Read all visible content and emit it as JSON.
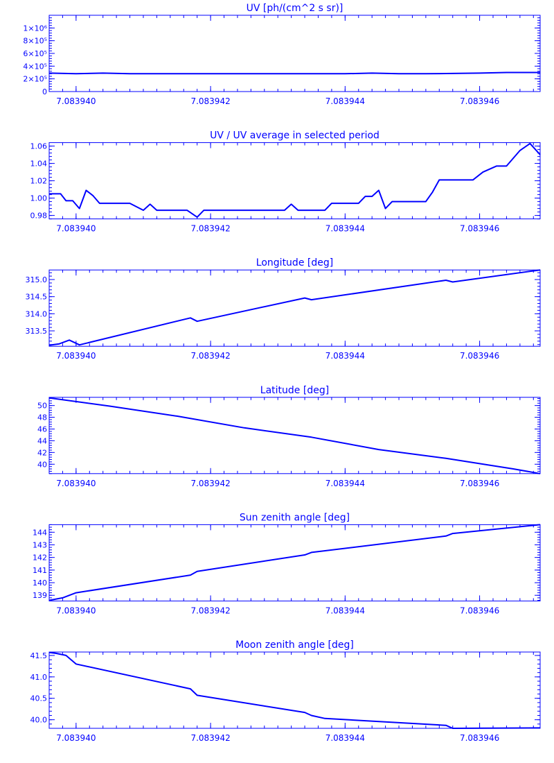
{
  "chart_data": [
    {
      "type": "line",
      "title": "UV [ph/(cm^2 s sr)]",
      "ylim": [
        0,
        1200000
      ],
      "yticks": [
        0,
        200000,
        400000,
        600000,
        800000,
        1000000
      ],
      "ytick_labels": [
        "0",
        "2×10⁵",
        "4×10⁵",
        "6×10⁵",
        "8×10⁵",
        "1×10⁶"
      ],
      "xticks": [
        "7.083940",
        "7.083942",
        "7.083944",
        "7.083946"
      ],
      "xlim": [
        7.0839396,
        7.0839469
      ],
      "series": [
        {
          "color": "#0000ff",
          "x": [
            7.0839396,
            7.08394,
            7.0839404,
            7.0839408,
            7.0839412,
            7.0839416,
            7.083942,
            7.0839424,
            7.0839428,
            7.0839432,
            7.0839436,
            7.083944,
            7.0839444,
            7.0839448,
            7.0839452,
            7.0839456,
            7.083946,
            7.0839464,
            7.0839469
          ],
          "y": [
            290000,
            280000,
            290000,
            280000,
            280000,
            280000,
            280000,
            280000,
            280000,
            280000,
            280000,
            280000,
            290000,
            280000,
            280000,
            285000,
            290000,
            300000,
            300000
          ]
        }
      ]
    },
    {
      "type": "line",
      "title": "UV / UV average in selected period",
      "ylim": [
        0.976,
        1.064
      ],
      "yticks": [
        0.98,
        1.0,
        1.02,
        1.04,
        1.06
      ],
      "ytick_labels": [
        "0.98",
        "1.00",
        "1.02",
        "1.04",
        "1.06"
      ],
      "xticks": [
        "7.083940",
        "7.083942",
        "7.083944",
        "7.083946"
      ],
      "xlim": [
        7.0839396,
        7.0839469
      ],
      "series": [
        {
          "color": "#0000ff",
          "x": [
            7.0839396,
            7.08393977,
            7.08393985,
            7.08393995,
            7.08394005,
            7.08394015,
            7.08394025,
            7.08394035,
            7.0839408,
            7.083941,
            7.0839411,
            7.0839412,
            7.08394165,
            7.0839418,
            7.0839419,
            7.0839431,
            7.0839432,
            7.0839433,
            7.0839437,
            7.0839438,
            7.0839442,
            7.0839443,
            7.0839444,
            7.0839445,
            7.0839446,
            7.0839447,
            7.0839448,
            7.0839452,
            7.0839453,
            7.0839454,
            7.0839456,
            7.0839459,
            7.08394605,
            7.08394625,
            7.0839464,
            7.0839466,
            7.08394675,
            7.0839469
          ],
          "y": [
            1.005,
            1.005,
            0.997,
            0.997,
            0.988,
            1.009,
            1.003,
            0.994,
            0.994,
            0.986,
            0.993,
            0.986,
            0.986,
            0.978,
            0.986,
            0.986,
            0.993,
            0.986,
            0.986,
            0.994,
            0.994,
            1.002,
            1.002,
            1.009,
            0.988,
            0.996,
            0.996,
            0.996,
            1.007,
            1.021,
            1.021,
            1.021,
            1.03,
            1.037,
            1.037,
            1.055,
            1.063,
            1.05
          ]
        }
      ]
    },
    {
      "type": "line",
      "title": "Longitude [deg]",
      "ylim": [
        313.05,
        315.28
      ],
      "yticks": [
        313.5,
        314.0,
        314.5,
        315.0
      ],
      "ytick_labels": [
        "313.5",
        "314.0",
        "314.5",
        "315.0"
      ],
      "xticks": [
        "7.083940",
        "7.083942",
        "7.083944",
        "7.083946"
      ],
      "xlim": [
        7.0839396,
        7.0839469
      ],
      "series": [
        {
          "color": "#0000ff",
          "x": [
            7.0839396,
            7.08393975,
            7.0839399,
            7.08394005,
            7.0839417,
            7.0839418,
            7.0839434,
            7.0839435,
            7.0839455,
            7.0839456,
            7.0839469
          ],
          "y": [
            313.08,
            313.12,
            313.23,
            313.09,
            313.88,
            313.78,
            314.46,
            314.41,
            314.98,
            314.93,
            315.28
          ]
        }
      ]
    },
    {
      "type": "line",
      "title": "Latitude [deg]",
      "ylim": [
        38.4,
        51.4
      ],
      "yticks": [
        40,
        42,
        44,
        46,
        48,
        50
      ],
      "ytick_labels": [
        "40",
        "42",
        "44",
        "46",
        "48",
        "50"
      ],
      "xticks": [
        "7.083940",
        "7.083942",
        "7.083944",
        "7.083946"
      ],
      "xlim": [
        7.0839396,
        7.0839469
      ],
      "series": [
        {
          "color": "#0000ff",
          "x": [
            7.0839396,
            7.0839405,
            7.0839415,
            7.0839425,
            7.0839435,
            7.0839445,
            7.0839455,
            7.0839465,
            7.0839469
          ],
          "y": [
            51.3,
            49.9,
            48.2,
            46.2,
            44.6,
            42.5,
            41.0,
            39.2,
            38.4
          ]
        }
      ]
    },
    {
      "type": "line",
      "title": "Sun zenith angle [deg]",
      "ylim": [
        138.55,
        144.6
      ],
      "yticks": [
        139,
        140,
        141,
        142,
        143,
        144
      ],
      "ytick_labels": [
        "139",
        "140",
        "141",
        "142",
        "143",
        "144"
      ],
      "xticks": [
        "7.083940",
        "7.083942",
        "7.083944",
        "7.083946"
      ],
      "xlim": [
        7.0839396,
        7.0839469
      ],
      "series": [
        {
          "color": "#0000ff",
          "x": [
            7.0839396,
            7.0839398,
            7.08394,
            7.0839417,
            7.0839418,
            7.0839434,
            7.0839435,
            7.0839455,
            7.0839456,
            7.0839469
          ],
          "y": [
            138.6,
            138.8,
            139.2,
            140.6,
            140.9,
            142.2,
            142.4,
            143.7,
            143.9,
            144.6
          ]
        }
      ]
    },
    {
      "type": "line",
      "title": "Moon zenith angle [deg]",
      "ylim": [
        39.8,
        41.58
      ],
      "yticks": [
        40.0,
        40.5,
        41.0,
        41.5
      ],
      "ytick_labels": [
        "40.0",
        "40.5",
        "41.0",
        "41.5"
      ],
      "xticks": [
        "7.083940",
        "7.083942",
        "7.083944",
        "7.083946"
      ],
      "xlim": [
        7.0839396,
        7.0839469
      ],
      "series": [
        {
          "color": "#0000ff",
          "x": [
            7.0839396,
            7.0839397,
            7.08393985,
            7.08394,
            7.0839417,
            7.0839418,
            7.0839434,
            7.0839435,
            7.0839437,
            7.0839455,
            7.0839456,
            7.0839469
          ],
          "y": [
            41.57,
            41.55,
            41.5,
            41.3,
            40.72,
            40.57,
            40.17,
            40.1,
            40.03,
            39.87,
            39.8,
            39.81
          ]
        }
      ]
    }
  ]
}
